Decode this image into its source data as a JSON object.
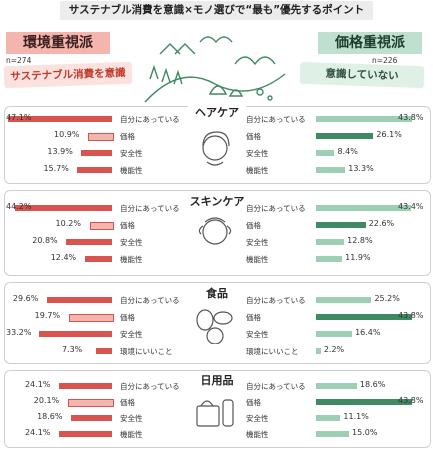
{
  "title": "サステナブル消費を意識×モノ選びで“最も”優先するポイント",
  "left_group": {
    "label": "環境重視派",
    "n": "n=274",
    "subtitle": "サステナブル消費を意識"
  },
  "right_group": {
    "label": "価格重視派",
    "n": "n=226",
    "subtitle": "意識していない"
  },
  "colors": {
    "left_bar": "#d9534f",
    "left_light": "#f3b5ad",
    "right_bar": "#9ccfb4",
    "right_dark": "#3f8a63",
    "panel_border": "#cfcfcf"
  },
  "icons": [
    "landscape-illustration-icon",
    "woman-hair-icon",
    "woman-skincare-icon",
    "vegetables-fish-icon",
    "tissue-bottle-icon"
  ],
  "chart_data": [
    {
      "type": "bar",
      "title": "ヘアケア",
      "categories": [
        "自分にあっている",
        "価格",
        "安全性",
        "機能性"
      ],
      "series": [
        {
          "name": "環境重視派",
          "values": [
            47.1,
            10.9,
            13.9,
            15.7
          ]
        },
        {
          "name": "価格重視派",
          "values": [
            43.8,
            26.1,
            8.4,
            13.3
          ]
        }
      ],
      "highlight": {
        "left": 0,
        "right": 1
      },
      "labels_left": [
        "47.1%",
        "10.9%",
        "13.9%",
        "15.7%"
      ],
      "labels_right": [
        "43.8%",
        "26.1%",
        "8.4%",
        "13.3%"
      ]
    },
    {
      "type": "bar",
      "title": "スキンケア",
      "categories": [
        "自分にあっている",
        "価格",
        "安全性",
        "機能性"
      ],
      "series": [
        {
          "name": "環境重視派",
          "values": [
            44.2,
            10.2,
            20.8,
            12.4
          ]
        },
        {
          "name": "価格重視派",
          "values": [
            43.4,
            22.6,
            12.8,
            11.9
          ]
        }
      ],
      "highlight": {
        "left": 0,
        "right": 1
      },
      "labels_left": [
        "44.2%",
        "10.2%",
        "20.8%",
        "12.4%"
      ],
      "labels_right": [
        "43.4%",
        "22.6%",
        "12.8%",
        "11.9%"
      ]
    },
    {
      "type": "bar",
      "title": "食品",
      "categories": [
        "自分にあっている",
        "価格",
        "安全性",
        "環境にいいこと"
      ],
      "series": [
        {
          "name": "環境重視派",
          "values": [
            29.6,
            19.7,
            33.2,
            7.3
          ]
        },
        {
          "name": "価格重視派",
          "values": [
            25.2,
            43.8,
            16.4,
            2.2
          ]
        }
      ],
      "highlight": {
        "left": 2,
        "right": 1
      },
      "labels_left": [
        "29.6%",
        "19.7%",
        "33.2%",
        "7.3%"
      ],
      "labels_right": [
        "25.2%",
        "43.8%",
        "16.4%",
        "2.2%"
      ]
    },
    {
      "type": "bar",
      "title": "日用品",
      "categories": [
        "自分にあっている",
        "価格",
        "安全性",
        "機能性"
      ],
      "series": [
        {
          "name": "環境重視派",
          "values": [
            24.1,
            20.1,
            18.6,
            24.1
          ]
        },
        {
          "name": "価格重視派",
          "values": [
            18.6,
            43.8,
            11.1,
            15.0
          ]
        }
      ],
      "highlight": {
        "left": 0,
        "right": 1
      },
      "labels_left": [
        "24.1%",
        "20.1%",
        "18.6%",
        "24.1%"
      ],
      "labels_right": [
        "18.6%",
        "43.8%",
        "11.1%",
        "15.0%"
      ]
    }
  ]
}
